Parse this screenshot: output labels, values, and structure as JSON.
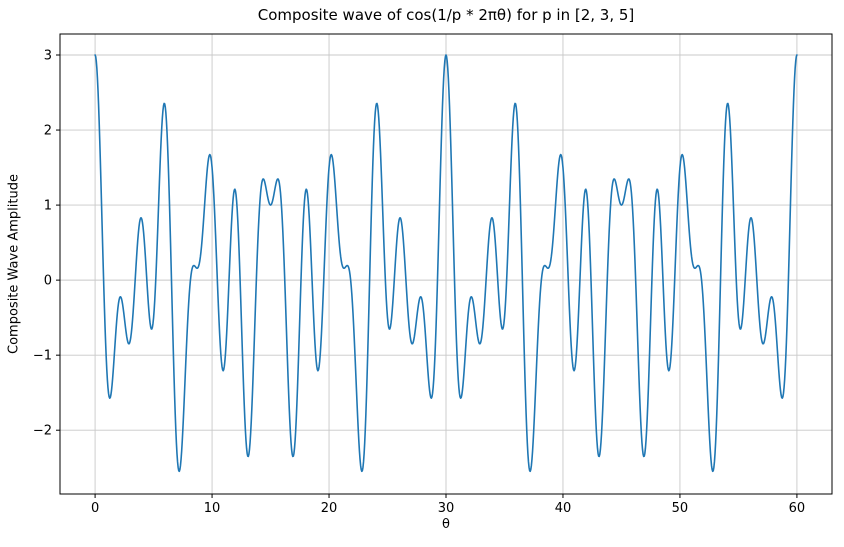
{
  "chart_data": {
    "type": "line",
    "title": "Composite wave of cos(1/p * 2πθ) for p in [2, 3, 5]",
    "xlabel": "θ",
    "ylabel": "Composite Wave Amplitude",
    "function": "f(θ) = Σ cos(2πθ / p) summed over p_values",
    "p_values": [
      2,
      3,
      5
    ],
    "x_range": [
      0,
      60
    ],
    "sample_step": 0.05,
    "xlim": [
      -3,
      63
    ],
    "ylim": [
      -2.85,
      3.28
    ],
    "xticks": [
      0,
      10,
      20,
      30,
      40,
      50,
      60
    ],
    "xtick_labels": [
      "0",
      "10",
      "20",
      "30",
      "40",
      "50",
      "60"
    ],
    "yticks": [
      -2,
      -1,
      0,
      1,
      2,
      3
    ],
    "ytick_labels": [
      "−2",
      "−1",
      "0",
      "1",
      "2",
      "3"
    ],
    "grid": true,
    "legend": "none",
    "line_color": "#1f77b4",
    "line_width": 1.6,
    "grid_color": "#c8c8c8",
    "spine_color": "#000000",
    "key_points": [
      {
        "theta": 0,
        "y": 3.0,
        "note": "global max"
      },
      {
        "theta": 6,
        "y": 2.31,
        "note": "local max"
      },
      {
        "theta": 7.2,
        "y": -2.55,
        "note": "global min"
      },
      {
        "theta": 9.8,
        "y": 1.68,
        "note": "local max"
      },
      {
        "theta": 13,
        "y": -2.31,
        "note": "local min"
      },
      {
        "theta": 15,
        "y": 1.0,
        "note": "center of period dip"
      },
      {
        "theta": 22.8,
        "y": -2.55,
        "note": "global min (mirror)"
      },
      {
        "theta": 30,
        "y": 3.0,
        "note": "global max, period = 30"
      },
      {
        "theta": 60,
        "y": 3.0,
        "note": "global max"
      }
    ]
  }
}
